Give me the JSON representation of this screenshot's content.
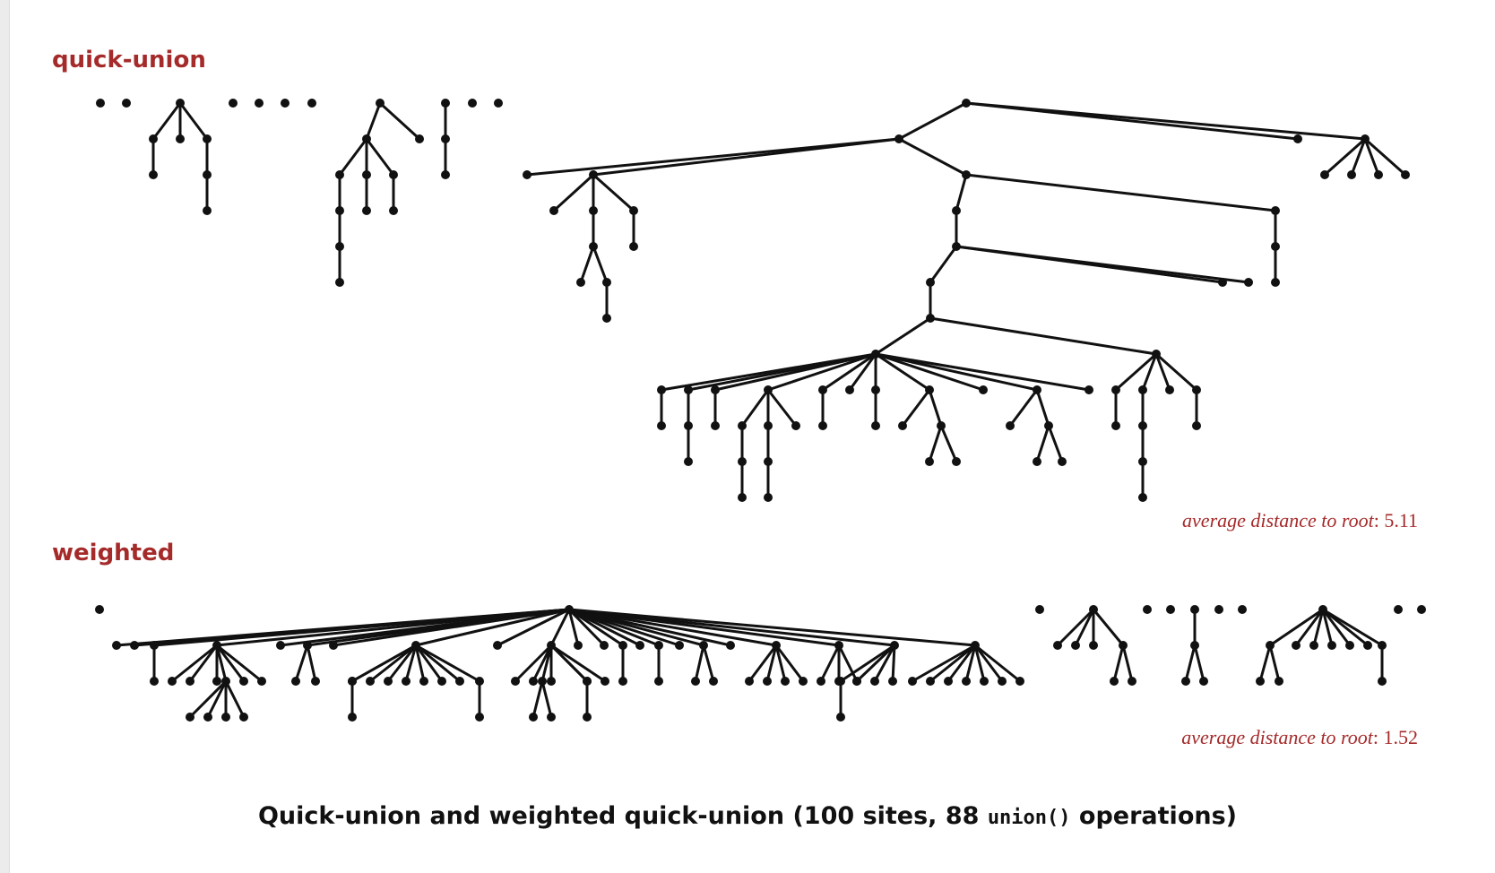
{
  "quick_union": {
    "label": "quick-union",
    "avg_label": "average distance to root",
    "avg_value": "5.11"
  },
  "weighted": {
    "label": "weighted",
    "avg_label": "average distance to root",
    "avg_value": "1.52"
  },
  "caption": {
    "before": "Quick-union and weighted quick-union (100 sites, 88 ",
    "code": "union()",
    "after": " operations)"
  },
  "colors": {
    "label": "#a52a2a",
    "node": "#111111",
    "edge": "#111111"
  }
}
